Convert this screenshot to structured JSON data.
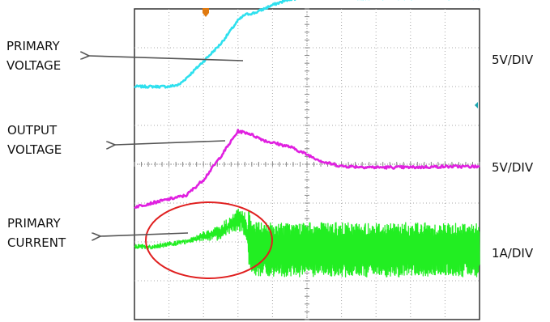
{
  "chart_data": {
    "type": "line",
    "title": "",
    "xlabel": "",
    "ylabel": "",
    "grid": true,
    "grid_divisions": {
      "x": 10,
      "y": 8
    },
    "annotations": [
      {
        "name": "primary-voltage",
        "lines": [
          "PRIMARY",
          "VOLTAGE"
        ]
      },
      {
        "name": "output-voltage",
        "lines": [
          "OUTPUT",
          "VOLTAGE"
        ]
      },
      {
        "name": "primary-current",
        "lines": [
          "PRIMARY",
          "CURRENT"
        ]
      }
    ],
    "channel_scales": [
      "5V/DIV",
      "5V/DIV",
      "1A/DIV"
    ],
    "series": [
      {
        "color": "#2ee0ee",
        "x": [
          0,
          1.0,
          1.3,
          1.6,
          2.0,
          2.5,
          3.0,
          3.2,
          3.5,
          4.0,
          4.5,
          5.0,
          6.0,
          7.0,
          8.0,
          9.0,
          10.0
        ],
        "y": [
          2.0,
          2.0,
          2.05,
          2.3,
          2.65,
          3.1,
          3.7,
          3.85,
          3.9,
          4.1,
          4.25,
          4.3,
          4.28,
          4.28,
          4.28,
          4.28,
          4.28
        ]
      },
      {
        "color": "#e020e0",
        "x": [
          0,
          0.5,
          1.0,
          1.5,
          2.0,
          2.5,
          3.0,
          3.3,
          3.8,
          4.5,
          5.0,
          5.5,
          6.0,
          7.0,
          8.0,
          9.0,
          10.0
        ],
        "y": [
          -1.1,
          -1.0,
          -0.9,
          -0.8,
          -0.4,
          0.2,
          0.85,
          0.8,
          0.6,
          0.45,
          0.25,
          0.05,
          -0.05,
          -0.08,
          -0.08,
          -0.06,
          -0.06
        ]
      },
      {
        "color": "#22ee22",
        "x": [
          0,
          0.5,
          1.0,
          1.5,
          2.0,
          2.5,
          2.8,
          3.0,
          3.2,
          3.4,
          3.6,
          4.0,
          5.0,
          6.0,
          7.0,
          8.0,
          9.0,
          10.0
        ],
        "y": [
          -2.1,
          -2.15,
          -2.05,
          -2.0,
          -1.85,
          -1.75,
          -1.55,
          -1.45,
          -1.5,
          -2.15,
          -2.2,
          -2.2,
          -2.2,
          -2.2,
          -2.2,
          -2.2,
          -2.2,
          -2.2
        ]
      }
    ]
  }
}
